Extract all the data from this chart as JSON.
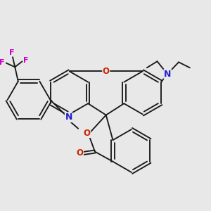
{
  "bg": "#e8e8e8",
  "bond": "#1a1a1a",
  "N_col": "#2020cc",
  "O_col": "#cc2200",
  "F_col": "#cc00cc",
  "lw": 1.35,
  "fs": 7.5,
  "dpi": 100,
  "figsize": [
    3.0,
    3.0
  ],
  "xlim": [
    20,
    280
  ],
  "ylim": [
    40,
    280
  ]
}
